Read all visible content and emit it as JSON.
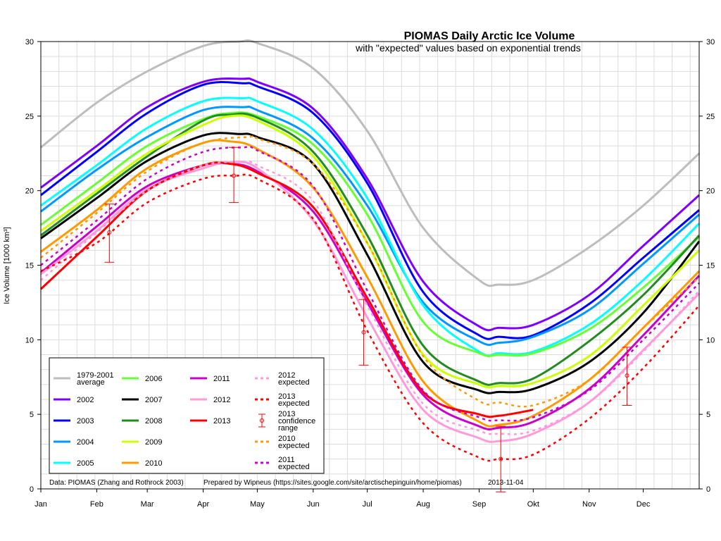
{
  "chart_data": {
    "type": "line",
    "title": "PIOMAS Daily Arctic Ice Volume",
    "subtitle": "with \"expected\" values based on exponential trends",
    "ylabel": "Ice Volume [1000 km³]",
    "xlabel": "",
    "xlim": [
      0,
      365
    ],
    "ylim": [
      0,
      30
    ],
    "y_ticks": [
      0,
      5,
      10,
      15,
      20,
      25,
      30
    ],
    "grid": true,
    "legend_position": "bottom-left",
    "months": [
      {
        "label": "Jan",
        "day": 0
      },
      {
        "label": "Feb",
        "day": 31
      },
      {
        "label": "Mar",
        "day": 59
      },
      {
        "label": "Apr",
        "day": 90
      },
      {
        "label": "May",
        "day": 120
      },
      {
        "label": "Jun",
        "day": 151
      },
      {
        "label": "Jul",
        "day": 181
      },
      {
        "label": "Aug",
        "day": 212
      },
      {
        "label": "Sep",
        "day": 243
      },
      {
        "label": "Okt",
        "day": 273
      },
      {
        "label": "Nov",
        "day": 304
      },
      {
        "label": "Dec",
        "day": 334
      }
    ],
    "series": [
      {
        "name": "1979-2001 average",
        "color": "#bdbdbd",
        "style": "solid",
        "x": [
          0,
          31,
          59,
          90,
          110,
          120,
          151,
          181,
          212,
          243,
          254,
          273,
          304,
          334,
          365
        ],
        "y": [
          22.9,
          25.9,
          28.0,
          29.7,
          30.0,
          29.9,
          28.2,
          24.0,
          17.5,
          14.0,
          13.7,
          14.0,
          16.2,
          19.0,
          22.5
        ]
      },
      {
        "name": "2002",
        "color": "#7f00ff",
        "style": "solid",
        "x": [
          0,
          31,
          59,
          90,
          112,
          120,
          151,
          181,
          212,
          243,
          254,
          273,
          304,
          334,
          365
        ],
        "y": [
          20.2,
          23.0,
          25.6,
          27.3,
          27.5,
          27.3,
          25.5,
          20.8,
          13.9,
          10.9,
          10.8,
          11.0,
          13.0,
          16.3,
          19.7
        ]
      },
      {
        "name": "2003",
        "color": "#0000ff",
        "style": "solid",
        "x": [
          0,
          31,
          59,
          90,
          112,
          120,
          151,
          181,
          212,
          243,
          254,
          273,
          304,
          334,
          365
        ],
        "y": [
          19.7,
          22.6,
          25.2,
          27.1,
          27.2,
          27.0,
          25.2,
          20.5,
          13.2,
          10.3,
          10.2,
          10.3,
          12.4,
          15.5,
          18.7
        ]
      },
      {
        "name": "2004",
        "color": "#0099ff",
        "style": "solid",
        "x": [
          0,
          31,
          59,
          90,
          112,
          120,
          151,
          181,
          212,
          243,
          254,
          273,
          304,
          334,
          365
        ],
        "y": [
          18.6,
          21.4,
          23.6,
          25.4,
          25.6,
          25.4,
          23.5,
          19.0,
          12.5,
          9.9,
          9.8,
          10.2,
          12.0,
          15.1,
          18.4
        ]
      },
      {
        "name": "2005",
        "color": "#00ffff",
        "style": "solid",
        "x": [
          0,
          31,
          59,
          90,
          112,
          120,
          151,
          181,
          212,
          243,
          254,
          273,
          304,
          334,
          365
        ],
        "y": [
          19.0,
          21.7,
          24.2,
          26.0,
          26.2,
          26.0,
          24.1,
          19.5,
          12.3,
          9.2,
          9.1,
          9.2,
          11.0,
          14.0,
          17.8
        ]
      },
      {
        "name": "2006",
        "color": "#66ff33",
        "style": "solid",
        "x": [
          0,
          31,
          59,
          90,
          105,
          120,
          151,
          181,
          212,
          243,
          254,
          273,
          304,
          334,
          365
        ],
        "y": [
          17.7,
          20.5,
          23.0,
          24.8,
          25.2,
          25.0,
          23.1,
          18.4,
          11.2,
          9.1,
          9.0,
          9.1,
          10.7,
          13.5,
          16.9
        ]
      },
      {
        "name": "2007",
        "color": "#000000",
        "style": "solid",
        "x": [
          0,
          31,
          59,
          90,
          110,
          120,
          151,
          181,
          212,
          243,
          254,
          273,
          304,
          334,
          365
        ],
        "y": [
          16.8,
          19.5,
          22.0,
          23.7,
          23.8,
          23.6,
          21.8,
          15.7,
          8.5,
          6.6,
          6.5,
          6.7,
          8.5,
          11.8,
          16.6
        ]
      },
      {
        "name": "2008",
        "color": "#228b22",
        "style": "solid",
        "x": [
          0,
          31,
          59,
          90,
          105,
          120,
          151,
          181,
          212,
          243,
          254,
          273,
          304,
          334,
          365
        ],
        "y": [
          17.0,
          19.8,
          22.3,
          24.7,
          25.1,
          24.9,
          22.6,
          17.0,
          9.6,
          7.2,
          7.1,
          7.4,
          9.9,
          13.0,
          17.0
        ]
      },
      {
        "name": "2009",
        "color": "#ccff00",
        "style": "solid",
        "x": [
          0,
          31,
          59,
          90,
          105,
          120,
          151,
          181,
          212,
          243,
          254,
          273,
          304,
          334,
          365
        ],
        "y": [
          17.3,
          20.0,
          22.5,
          24.4,
          25.0,
          24.7,
          22.3,
          16.5,
          9.0,
          7.0,
          6.9,
          7.1,
          8.9,
          12.3,
          16.0
        ]
      },
      {
        "name": "2010",
        "color": "#ff9900",
        "style": "solid",
        "x": [
          0,
          31,
          59,
          90,
          105,
          120,
          151,
          181,
          212,
          243,
          254,
          273,
          304,
          334,
          365
        ],
        "y": [
          15.9,
          18.7,
          21.5,
          23.2,
          23.3,
          22.8,
          20.2,
          14.2,
          7.2,
          4.5,
          4.3,
          4.9,
          7.3,
          10.8,
          14.6
        ]
      },
      {
        "name": "2011",
        "color": "#cc00cc",
        "style": "solid",
        "x": [
          0,
          31,
          59,
          90,
          105,
          120,
          151,
          181,
          212,
          243,
          254,
          273,
          304,
          334,
          365
        ],
        "y": [
          14.5,
          17.6,
          20.3,
          21.7,
          21.8,
          21.3,
          18.6,
          12.5,
          6.3,
          4.2,
          4.1,
          4.5,
          6.7,
          10.3,
          14.3
        ]
      },
      {
        "name": "2012",
        "color": "#ff99dd",
        "style": "solid",
        "x": [
          0,
          31,
          59,
          90,
          105,
          120,
          151,
          181,
          212,
          243,
          254,
          273,
          304,
          334,
          365
        ],
        "y": [
          14.4,
          17.3,
          20.1,
          21.5,
          21.9,
          21.5,
          18.0,
          11.5,
          5.3,
          3.4,
          3.2,
          3.7,
          5.8,
          9.3,
          13.1
        ]
      },
      {
        "name": "2013",
        "color": "#ff0000",
        "style": "solid",
        "x": [
          0,
          31,
          59,
          90,
          105,
          120,
          151,
          181,
          212,
          243,
          254,
          273
        ],
        "y": [
          13.4,
          16.9,
          20.0,
          21.7,
          21.8,
          21.2,
          18.9,
          12.8,
          6.5,
          5.0,
          4.9,
          5.3
        ]
      },
      {
        "name": "2010 expected",
        "color": "#ff9900",
        "style": "dashed",
        "x": [
          0,
          31,
          59,
          90,
          115,
          120,
          151,
          181,
          212,
          243,
          254,
          273,
          304,
          334,
          365
        ],
        "y": [
          15.5,
          18.5,
          21.3,
          23.2,
          23.6,
          23.5,
          21.8,
          16.5,
          8.9,
          5.9,
          5.8,
          5.6,
          7.3,
          10.8,
          14.2
        ]
      },
      {
        "name": "2011 expected",
        "color": "#cc00cc",
        "style": "dashed",
        "x": [
          0,
          31,
          59,
          90,
          112,
          120,
          151,
          181,
          212,
          243,
          254,
          273,
          304,
          334,
          365
        ],
        "y": [
          15.0,
          18.0,
          20.8,
          22.6,
          22.9,
          22.7,
          20.3,
          13.3,
          6.6,
          4.8,
          4.6,
          4.8,
          6.6,
          10.0,
          13.8
        ]
      },
      {
        "name": "2012 expected",
        "color": "#ff99dd",
        "style": "dashed",
        "x": [
          0,
          31,
          59,
          90,
          112,
          120,
          151,
          181,
          212,
          243,
          254,
          273,
          304,
          334,
          365
        ],
        "y": [
          14.0,
          17.2,
          20.0,
          21.7,
          21.9,
          21.7,
          19.3,
          12.3,
          5.7,
          3.9,
          3.7,
          3.9,
          5.8,
          9.2,
          13.3
        ]
      },
      {
        "name": "2013 expected",
        "color": "#ff0000",
        "style": "dashed",
        "x": [
          0,
          31,
          59,
          90,
          108,
          120,
          151,
          181,
          212,
          243,
          254,
          273,
          304,
          334,
          365
        ],
        "y": [
          14.6,
          16.5,
          19.2,
          20.8,
          21.0,
          20.8,
          18.1,
          10.6,
          4.4,
          2.1,
          2.0,
          2.3,
          4.7,
          8.1,
          12.3
        ]
      }
    ],
    "error_bars": {
      "name": "2013 confidence range",
      "color": "#ff0000",
      "points": [
        {
          "x": 38,
          "y": 17.2,
          "low": 15.2,
          "high": 19.1
        },
        {
          "x": 107,
          "y": 21.0,
          "low": 19.2,
          "high": 22.9
        },
        {
          "x": 179,
          "y": 10.5,
          "low": 8.3,
          "high": 12.7
        },
        {
          "x": 255,
          "y": 2.0,
          "low": -0.2,
          "high": 4.2
        },
        {
          "x": 325,
          "y": 7.6,
          "low": 5.6,
          "high": 9.5
        }
      ]
    },
    "legend": [
      {
        "label1": "1979-2001",
        "label2": "average",
        "series": "1979-2001 average"
      },
      {
        "label1": "2002",
        "label2": "",
        "series": "2002"
      },
      {
        "label1": "2003",
        "label2": "",
        "series": "2003"
      },
      {
        "label1": "2004",
        "label2": "",
        "series": "2004"
      },
      {
        "label1": "2005",
        "label2": "",
        "series": "2005"
      },
      {
        "label1": "2006",
        "label2": "",
        "series": "2006"
      },
      {
        "label1": "2007",
        "label2": "",
        "series": "2007"
      },
      {
        "label1": "2008",
        "label2": "",
        "series": "2008"
      },
      {
        "label1": "2009",
        "label2": "",
        "series": "2009"
      },
      {
        "label1": "2010",
        "label2": "",
        "series": "2010"
      },
      {
        "label1": "2011",
        "label2": "",
        "series": "2011"
      },
      {
        "label1": "2012",
        "label2": "",
        "series": "2012"
      },
      {
        "label1": "2013",
        "label2": "",
        "series": "2013"
      },
      {
        "label1": "2010",
        "label2": "expected",
        "series": "2010 expected"
      },
      {
        "label1": "2011",
        "label2": "expected",
        "series": "2011 expected"
      },
      {
        "label1": "2012",
        "label2": "expected",
        "series": "2012 expected"
      },
      {
        "label1": "2013",
        "label2": "expected",
        "series": "2013 expected"
      },
      {
        "label1": "2013",
        "label2": "confidence",
        "label3": "range",
        "series": "2013 confidence range"
      }
    ],
    "footer": {
      "data_source": "Data: PIOMAS (Zhang and Rothrock 2003)",
      "prepared_by": "Prepared by Wipneus (https://sites.google.com/site/arctischepinguin/home/piomas)",
      "date": "2013-11-04"
    }
  }
}
